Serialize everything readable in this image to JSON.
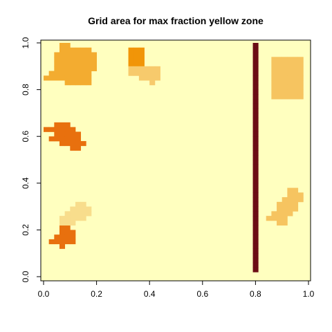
{
  "chart_data": {
    "type": "heatmap",
    "title": "Grid area for max fraction yellow zone",
    "xlabel": "",
    "ylabel": "",
    "xlim": [
      0,
      1
    ],
    "ylim": [
      0,
      1
    ],
    "grid": false,
    "legend": "none",
    "background_color": "#FFFFBF",
    "x_ticks": [
      "0.0",
      "0.2",
      "0.4",
      "0.6",
      "0.8",
      "1.0"
    ],
    "y_ticks": [
      "0.0",
      "0.2",
      "0.4",
      "0.6",
      "0.8",
      "1.0"
    ],
    "cell_size": 0.02,
    "regions": [
      {
        "color": "#F3AC30",
        "cells": [
          [
            0.06,
            0.98
          ],
          [
            0.08,
            0.98
          ],
          [
            0.06,
            0.96
          ],
          [
            0.08,
            0.96
          ],
          [
            0.1,
            0.96
          ],
          [
            0.12,
            0.96
          ],
          [
            0.14,
            0.96
          ],
          [
            0.16,
            0.96
          ],
          [
            0.04,
            0.94
          ],
          [
            0.06,
            0.94
          ],
          [
            0.08,
            0.94
          ],
          [
            0.1,
            0.94
          ],
          [
            0.12,
            0.94
          ],
          [
            0.14,
            0.94
          ],
          [
            0.16,
            0.94
          ],
          [
            0.18,
            0.94
          ],
          [
            0.04,
            0.92
          ],
          [
            0.06,
            0.92
          ],
          [
            0.08,
            0.92
          ],
          [
            0.1,
            0.92
          ],
          [
            0.12,
            0.92
          ],
          [
            0.14,
            0.92
          ],
          [
            0.16,
            0.92
          ],
          [
            0.18,
            0.92
          ],
          [
            0.04,
            0.9
          ],
          [
            0.06,
            0.9
          ],
          [
            0.08,
            0.9
          ],
          [
            0.1,
            0.9
          ],
          [
            0.12,
            0.9
          ],
          [
            0.14,
            0.9
          ],
          [
            0.16,
            0.9
          ],
          [
            0.18,
            0.9
          ],
          [
            0.04,
            0.88
          ],
          [
            0.06,
            0.88
          ],
          [
            0.08,
            0.88
          ],
          [
            0.1,
            0.88
          ],
          [
            0.12,
            0.88
          ],
          [
            0.14,
            0.88
          ],
          [
            0.16,
            0.88
          ],
          [
            0.18,
            0.88
          ],
          [
            0.02,
            0.86
          ],
          [
            0.04,
            0.86
          ],
          [
            0.06,
            0.86
          ],
          [
            0.08,
            0.86
          ],
          [
            0.1,
            0.86
          ],
          [
            0.12,
            0.86
          ],
          [
            0.14,
            0.86
          ],
          [
            0.16,
            0.86
          ],
          [
            0.0,
            0.84
          ],
          [
            0.02,
            0.84
          ],
          [
            0.04,
            0.84
          ],
          [
            0.06,
            0.84
          ],
          [
            0.08,
            0.84
          ],
          [
            0.1,
            0.84
          ],
          [
            0.12,
            0.84
          ],
          [
            0.14,
            0.84
          ],
          [
            0.16,
            0.84
          ],
          [
            0.08,
            0.82
          ],
          [
            0.1,
            0.82
          ],
          [
            0.12,
            0.82
          ],
          [
            0.14,
            0.82
          ],
          [
            0.16,
            0.82
          ]
        ]
      },
      {
        "color": "#F19508",
        "cells": [
          [
            0.32,
            0.96
          ],
          [
            0.34,
            0.96
          ],
          [
            0.36,
            0.96
          ],
          [
            0.32,
            0.94
          ],
          [
            0.34,
            0.94
          ],
          [
            0.36,
            0.94
          ],
          [
            0.32,
            0.92
          ],
          [
            0.34,
            0.92
          ],
          [
            0.36,
            0.92
          ],
          [
            0.32,
            0.9
          ],
          [
            0.34,
            0.9
          ],
          [
            0.36,
            0.9
          ]
        ]
      },
      {
        "color": "#F7CA6C",
        "cells": [
          [
            0.32,
            0.88
          ],
          [
            0.34,
            0.88
          ],
          [
            0.36,
            0.88
          ],
          [
            0.38,
            0.88
          ],
          [
            0.4,
            0.88
          ],
          [
            0.42,
            0.88
          ],
          [
            0.32,
            0.86
          ],
          [
            0.34,
            0.86
          ],
          [
            0.36,
            0.86
          ],
          [
            0.38,
            0.86
          ],
          [
            0.4,
            0.86
          ],
          [
            0.42,
            0.86
          ],
          [
            0.36,
            0.84
          ],
          [
            0.38,
            0.84
          ],
          [
            0.4,
            0.84
          ],
          [
            0.42,
            0.84
          ],
          [
            0.4,
            0.82
          ]
        ]
      },
      {
        "color": "#F6C460",
        "cells": [
          [
            0.86,
            0.92
          ],
          [
            0.88,
            0.92
          ],
          [
            0.9,
            0.92
          ],
          [
            0.92,
            0.92
          ],
          [
            0.94,
            0.92
          ],
          [
            0.96,
            0.92
          ],
          [
            0.86,
            0.9
          ],
          [
            0.88,
            0.9
          ],
          [
            0.9,
            0.9
          ],
          [
            0.92,
            0.9
          ],
          [
            0.94,
            0.9
          ],
          [
            0.96,
            0.9
          ],
          [
            0.86,
            0.88
          ],
          [
            0.88,
            0.88
          ],
          [
            0.9,
            0.88
          ],
          [
            0.92,
            0.88
          ],
          [
            0.94,
            0.88
          ],
          [
            0.96,
            0.88
          ],
          [
            0.86,
            0.86
          ],
          [
            0.88,
            0.86
          ],
          [
            0.9,
            0.86
          ],
          [
            0.92,
            0.86
          ],
          [
            0.94,
            0.86
          ],
          [
            0.96,
            0.86
          ],
          [
            0.86,
            0.84
          ],
          [
            0.88,
            0.84
          ],
          [
            0.9,
            0.84
          ],
          [
            0.92,
            0.84
          ],
          [
            0.94,
            0.84
          ],
          [
            0.96,
            0.84
          ],
          [
            0.86,
            0.82
          ],
          [
            0.88,
            0.82
          ],
          [
            0.9,
            0.82
          ],
          [
            0.92,
            0.82
          ],
          [
            0.94,
            0.82
          ],
          [
            0.96,
            0.82
          ],
          [
            0.86,
            0.8
          ],
          [
            0.88,
            0.8
          ],
          [
            0.9,
            0.8
          ],
          [
            0.92,
            0.8
          ],
          [
            0.94,
            0.8
          ],
          [
            0.96,
            0.8
          ],
          [
            0.86,
            0.78
          ],
          [
            0.88,
            0.78
          ],
          [
            0.9,
            0.78
          ],
          [
            0.92,
            0.78
          ],
          [
            0.94,
            0.78
          ],
          [
            0.96,
            0.78
          ],
          [
            0.86,
            0.76
          ],
          [
            0.88,
            0.76
          ],
          [
            0.9,
            0.76
          ],
          [
            0.92,
            0.76
          ],
          [
            0.94,
            0.76
          ],
          [
            0.96,
            0.76
          ]
        ]
      },
      {
        "color": "#E8700E",
        "cells": [
          [
            0.04,
            0.64
          ],
          [
            0.06,
            0.64
          ],
          [
            0.08,
            0.64
          ],
          [
            0.0,
            0.62
          ],
          [
            0.02,
            0.62
          ],
          [
            0.04,
            0.62
          ],
          [
            0.06,
            0.62
          ],
          [
            0.08,
            0.62
          ],
          [
            0.1,
            0.62
          ],
          [
            0.04,
            0.6
          ],
          [
            0.06,
            0.6
          ],
          [
            0.08,
            0.6
          ],
          [
            0.1,
            0.6
          ],
          [
            0.12,
            0.6
          ],
          [
            0.02,
            0.58
          ],
          [
            0.04,
            0.58
          ],
          [
            0.06,
            0.58
          ],
          [
            0.08,
            0.58
          ],
          [
            0.1,
            0.58
          ],
          [
            0.12,
            0.58
          ],
          [
            0.06,
            0.56
          ],
          [
            0.08,
            0.56
          ],
          [
            0.1,
            0.56
          ],
          [
            0.12,
            0.56
          ],
          [
            0.14,
            0.56
          ],
          [
            0.1,
            0.54
          ],
          [
            0.12,
            0.54
          ],
          [
            0.06,
            0.2
          ],
          [
            0.08,
            0.2
          ],
          [
            0.06,
            0.18
          ],
          [
            0.08,
            0.18
          ],
          [
            0.1,
            0.18
          ],
          [
            0.04,
            0.16
          ],
          [
            0.06,
            0.16
          ],
          [
            0.08,
            0.16
          ],
          [
            0.1,
            0.16
          ],
          [
            0.02,
            0.14
          ],
          [
            0.04,
            0.14
          ],
          [
            0.06,
            0.14
          ],
          [
            0.08,
            0.14
          ],
          [
            0.1,
            0.14
          ],
          [
            0.06,
            0.12
          ]
        ]
      },
      {
        "color": "#F8DD8C",
        "cells": [
          [
            0.12,
            0.3
          ],
          [
            0.14,
            0.3
          ],
          [
            0.1,
            0.28
          ],
          [
            0.12,
            0.28
          ],
          [
            0.14,
            0.28
          ],
          [
            0.16,
            0.28
          ],
          [
            0.08,
            0.26
          ],
          [
            0.1,
            0.26
          ],
          [
            0.12,
            0.26
          ],
          [
            0.14,
            0.26
          ],
          [
            0.16,
            0.26
          ],
          [
            0.06,
            0.24
          ],
          [
            0.08,
            0.24
          ],
          [
            0.1,
            0.24
          ],
          [
            0.12,
            0.24
          ],
          [
            0.14,
            0.24
          ],
          [
            0.06,
            0.22
          ],
          [
            0.08,
            0.22
          ],
          [
            0.1,
            0.22
          ]
        ]
      },
      {
        "color": "#F6C460",
        "cells": [
          [
            0.92,
            0.36
          ],
          [
            0.94,
            0.36
          ],
          [
            0.92,
            0.34
          ],
          [
            0.94,
            0.34
          ],
          [
            0.96,
            0.34
          ],
          [
            0.9,
            0.32
          ],
          [
            0.92,
            0.32
          ],
          [
            0.94,
            0.32
          ],
          [
            0.96,
            0.32
          ],
          [
            0.88,
            0.3
          ],
          [
            0.9,
            0.3
          ],
          [
            0.92,
            0.3
          ],
          [
            0.94,
            0.3
          ],
          [
            0.88,
            0.28
          ],
          [
            0.9,
            0.28
          ],
          [
            0.92,
            0.28
          ],
          [
            0.94,
            0.28
          ],
          [
            0.86,
            0.26
          ],
          [
            0.88,
            0.26
          ],
          [
            0.9,
            0.26
          ],
          [
            0.92,
            0.26
          ],
          [
            0.84,
            0.24
          ],
          [
            0.86,
            0.24
          ],
          [
            0.88,
            0.24
          ],
          [
            0.9,
            0.24
          ],
          [
            0.88,
            0.22
          ],
          [
            0.9,
            0.22
          ]
        ]
      },
      {
        "color": "#6B0D14",
        "cells": [
          [
            0.79,
            0.98
          ],
          [
            0.79,
            0.96
          ],
          [
            0.79,
            0.94
          ],
          [
            0.79,
            0.92
          ],
          [
            0.79,
            0.9
          ],
          [
            0.79,
            0.88
          ],
          [
            0.79,
            0.86
          ],
          [
            0.79,
            0.84
          ],
          [
            0.79,
            0.82
          ],
          [
            0.79,
            0.8
          ],
          [
            0.79,
            0.78
          ],
          [
            0.79,
            0.76
          ],
          [
            0.79,
            0.74
          ],
          [
            0.79,
            0.72
          ],
          [
            0.79,
            0.7
          ],
          [
            0.79,
            0.68
          ],
          [
            0.79,
            0.66
          ],
          [
            0.79,
            0.64
          ],
          [
            0.79,
            0.62
          ],
          [
            0.79,
            0.6
          ],
          [
            0.79,
            0.58
          ],
          [
            0.79,
            0.56
          ],
          [
            0.79,
            0.54
          ],
          [
            0.79,
            0.52
          ],
          [
            0.79,
            0.5
          ],
          [
            0.79,
            0.48
          ],
          [
            0.79,
            0.46
          ],
          [
            0.79,
            0.44
          ],
          [
            0.79,
            0.42
          ],
          [
            0.79,
            0.4
          ],
          [
            0.79,
            0.38
          ],
          [
            0.79,
            0.36
          ],
          [
            0.79,
            0.34
          ],
          [
            0.79,
            0.32
          ],
          [
            0.79,
            0.3
          ],
          [
            0.79,
            0.28
          ],
          [
            0.79,
            0.26
          ],
          [
            0.79,
            0.24
          ],
          [
            0.79,
            0.22
          ],
          [
            0.79,
            0.2
          ],
          [
            0.79,
            0.18
          ],
          [
            0.79,
            0.16
          ],
          [
            0.79,
            0.14
          ],
          [
            0.79,
            0.12
          ],
          [
            0.79,
            0.1
          ],
          [
            0.79,
            0.08
          ],
          [
            0.79,
            0.06
          ],
          [
            0.79,
            0.04
          ],
          [
            0.79,
            0.02
          ]
        ]
      }
    ]
  }
}
